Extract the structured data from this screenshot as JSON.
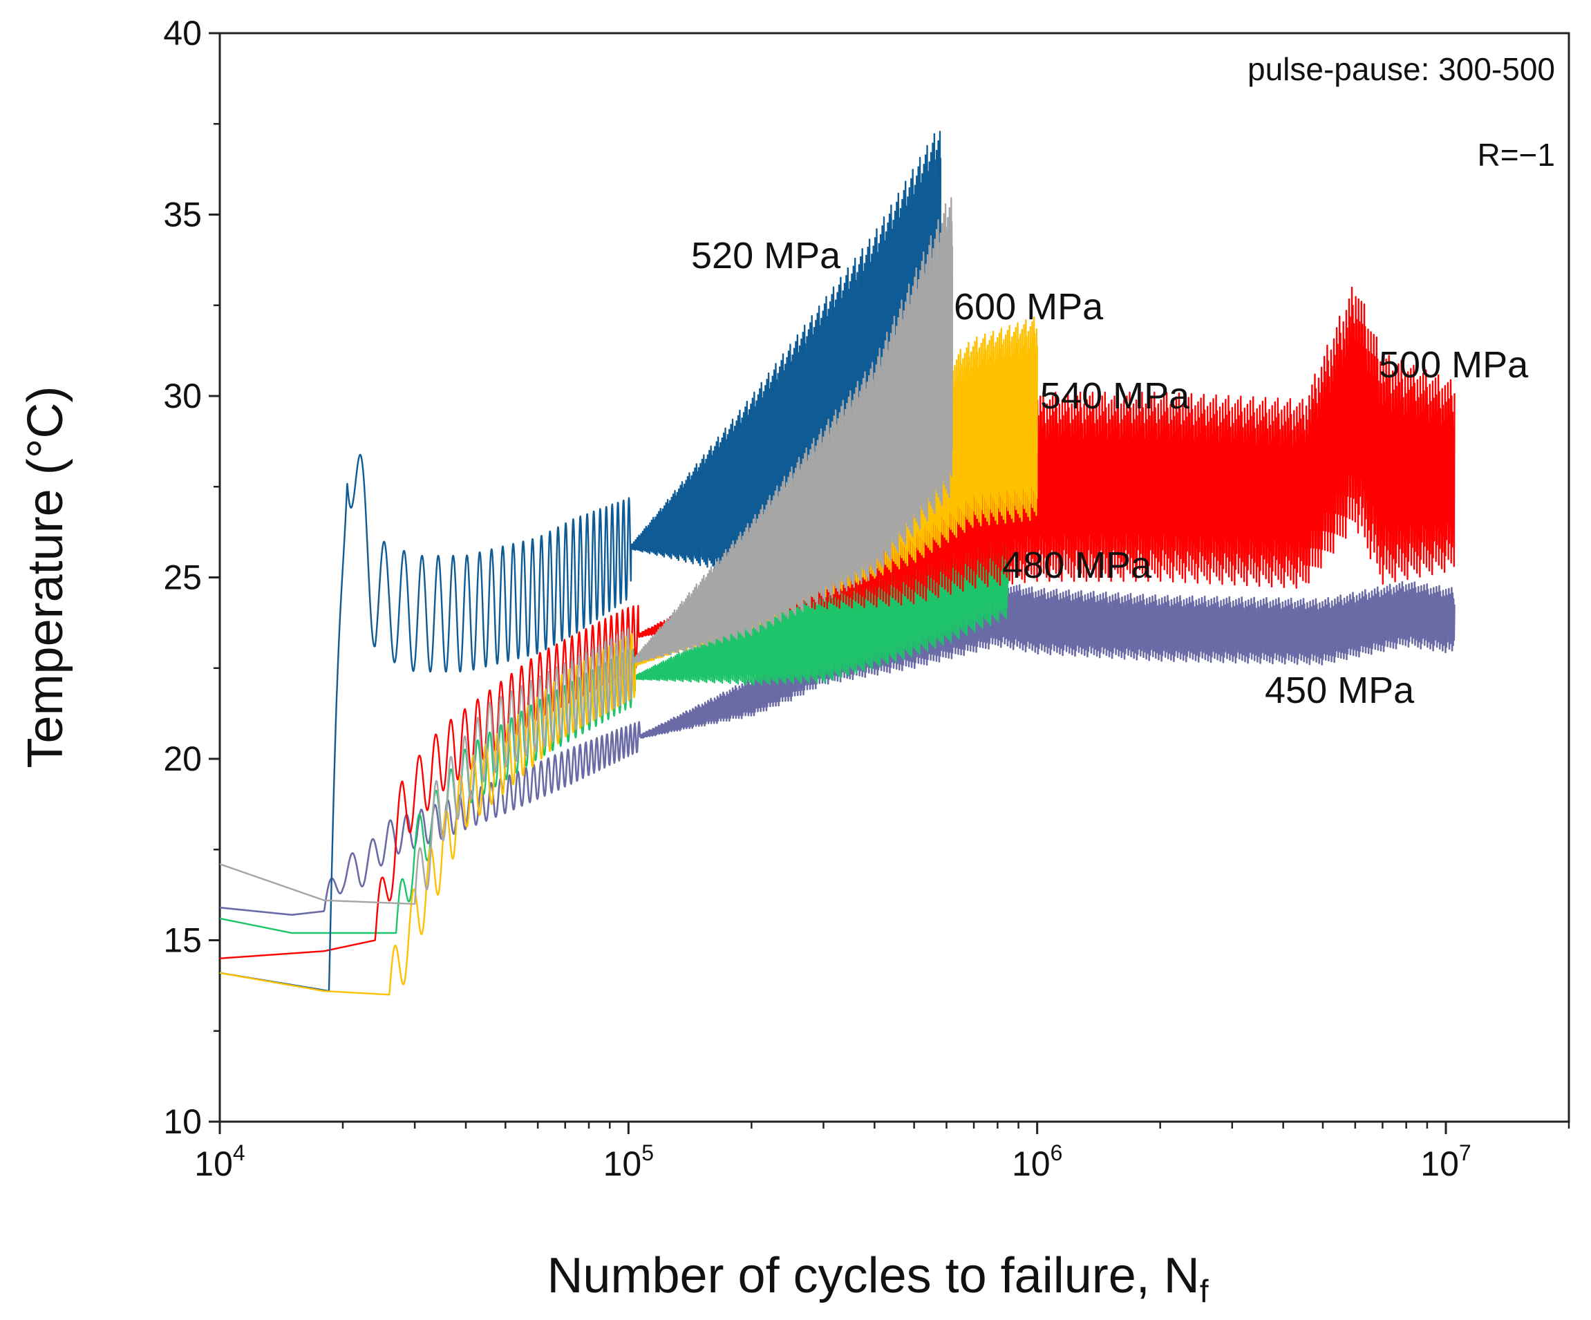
{
  "chart_data": {
    "type": "line",
    "title": "",
    "xlabel": "Number of cycles to failure, N",
    "xlabel_subscript": "f",
    "ylabel": "Temperature (°C)",
    "x_scale": "log",
    "xlim": [
      10000,
      20000000
    ],
    "ylim": [
      10,
      40
    ],
    "x_ticks": [
      {
        "value": 10000,
        "base": "10",
        "exp": "4"
      },
      {
        "value": 100000,
        "base": "10",
        "exp": "5"
      },
      {
        "value": 1000000,
        "base": "10",
        "exp": "6"
      },
      {
        "value": 10000000,
        "base": "10",
        "exp": "7"
      }
    ],
    "y_ticks": [
      {
        "value": 10,
        "label": "10"
      },
      {
        "value": 15,
        "label": "15"
      },
      {
        "value": 20,
        "label": "20"
      },
      {
        "value": 25,
        "label": "25"
      },
      {
        "value": 30,
        "label": "30"
      },
      {
        "value": 35,
        "label": "35"
      },
      {
        "value": 40,
        "label": "40"
      }
    ],
    "grid": false,
    "legend": "none; series labelled directly at line ends",
    "annotations": [
      "pulse-pause: 300-500",
      "R=−1"
    ],
    "series": [
      {
        "name": "450 MPa",
        "color": "#6a6aa6",
        "start_step": 18000,
        "osc_period": 2500,
        "osc_amp": 0.5,
        "envelope": [
          [
            10000,
            15.9
          ],
          [
            15000,
            15.7
          ],
          [
            18000,
            15.8
          ],
          [
            20000,
            16.9
          ],
          [
            22000,
            16.9
          ],
          [
            26000,
            17.8
          ],
          [
            35000,
            18.3
          ],
          [
            50000,
            19.0
          ],
          [
            100000,
            20.5
          ],
          [
            200000,
            21.7
          ],
          [
            300000,
            22.8
          ],
          [
            500000,
            23.4
          ],
          [
            800000,
            24.0
          ],
          [
            1000000,
            23.8
          ],
          [
            2000000,
            23.6
          ],
          [
            5000000,
            23.5
          ],
          [
            8000000,
            24.0
          ],
          [
            10500000,
            23.8
          ]
        ],
        "band": [
          [
            10000,
            0.0
          ],
          [
            100000,
            0.0
          ],
          [
            250000,
            0.7
          ],
          [
            500000,
            0.9
          ],
          [
            1000000,
            0.9
          ],
          [
            10500000,
            0.9
          ]
        ],
        "label": "450 MPa"
      },
      {
        "name": "480 MPa",
        "color": "#1dc46a",
        "start_step": 27000,
        "osc_period": 3000,
        "osc_amp": 0.8,
        "envelope": [
          [
            10000,
            15.6
          ],
          [
            15000,
            15.2
          ],
          [
            27000,
            15.2
          ],
          [
            30000,
            17.5
          ],
          [
            40000,
            19.5
          ],
          [
            60000,
            20.8
          ],
          [
            100000,
            22.2
          ],
          [
            200000,
            23.0
          ],
          [
            400000,
            24.2
          ],
          [
            600000,
            25.0
          ],
          [
            850000,
            25.8
          ]
        ],
        "band": [
          [
            10000,
            0.0
          ],
          [
            100000,
            0.0
          ],
          [
            180000,
            0.8
          ],
          [
            300000,
            1.6
          ],
          [
            500000,
            1.8
          ],
          [
            850000,
            1.9
          ]
        ],
        "label": "480 MPa"
      },
      {
        "name": "500 MPa",
        "color": "#ff0000",
        "start_step": 24000,
        "osc_period": 3000,
        "osc_amp": 0.9,
        "envelope": [
          [
            10000,
            14.5
          ],
          [
            18000,
            14.7
          ],
          [
            24000,
            15.0
          ],
          [
            28000,
            18.6
          ],
          [
            35000,
            20.0
          ],
          [
            60000,
            22.0
          ],
          [
            100000,
            23.3
          ],
          [
            200000,
            24.5
          ],
          [
            400000,
            25.8
          ],
          [
            700000,
            27.0
          ],
          [
            1000000,
            27.5
          ],
          [
            2000000,
            27.5
          ],
          [
            4500000,
            27.3
          ],
          [
            6000000,
            29.8
          ],
          [
            7000000,
            28.0
          ],
          [
            10500000,
            27.8
          ]
        ],
        "band": [
          [
            10000,
            0.0
          ],
          [
            100000,
            0.0
          ],
          [
            250000,
            0.8
          ],
          [
            500000,
            2.0
          ],
          [
            1000000,
            2.6
          ],
          [
            4500000,
            2.6
          ],
          [
            6000000,
            3.4
          ],
          [
            10500000,
            2.6
          ]
        ],
        "label": "500 MPa"
      },
      {
        "name": "520 MPa",
        "color": "#0e5b96",
        "start_step": 18500,
        "osc_period": 3000,
        "osc_amp": 1.6,
        "envelope": [
          [
            10000,
            14.1
          ],
          [
            18500,
            13.6
          ],
          [
            20500,
            29.0
          ],
          [
            24000,
            24.5
          ],
          [
            30000,
            24.0
          ],
          [
            40000,
            24.0
          ],
          [
            60000,
            24.5
          ],
          [
            100000,
            25.8
          ],
          [
            200000,
            27.5
          ],
          [
            400000,
            30.5
          ],
          [
            580000,
            33.0
          ]
        ],
        "band": [
          [
            10000,
            0.0
          ],
          [
            100000,
            0.0
          ],
          [
            200000,
            2.5
          ],
          [
            400000,
            4.0
          ],
          [
            580000,
            4.5
          ]
        ],
        "label": "520 MPa"
      },
      {
        "name": "540 MPa",
        "color": "#ffc000",
        "start_step": 26000,
        "osc_period": 3000,
        "osc_amp": 0.9,
        "envelope": [
          [
            10000,
            14.1
          ],
          [
            18000,
            13.6
          ],
          [
            26000,
            13.5
          ],
          [
            30000,
            15.6
          ],
          [
            40000,
            19.0
          ],
          [
            70000,
            21.5
          ],
          [
            100000,
            22.5
          ],
          [
            200000,
            24.5
          ],
          [
            400000,
            27.0
          ],
          [
            700000,
            29.0
          ],
          [
            1000000,
            29.4
          ]
        ],
        "band": [
          [
            10000,
            0.0
          ],
          [
            100000,
            0.0
          ],
          [
            250000,
            1.2
          ],
          [
            500000,
            2.4
          ],
          [
            1000000,
            2.8
          ]
        ],
        "label": "540 MPa"
      },
      {
        "name": "600 MPa",
        "color": "#a6a6a6",
        "start_step": 30000,
        "osc_period": 3000,
        "osc_amp": 1.0,
        "envelope": [
          [
            10000,
            17.1
          ],
          [
            18000,
            16.1
          ],
          [
            30000,
            16.0
          ],
          [
            34000,
            18.5
          ],
          [
            45000,
            20.5
          ],
          [
            80000,
            22.0
          ],
          [
            100000,
            22.6
          ],
          [
            200000,
            25.0
          ],
          [
            400000,
            28.0
          ],
          [
            620000,
            31.5
          ]
        ],
        "band": [
          [
            10000,
            0.0
          ],
          [
            100000,
            0.0
          ],
          [
            200000,
            1.6
          ],
          [
            400000,
            3.0
          ],
          [
            620000,
            4.2
          ]
        ],
        "label": "600 MPa"
      }
    ]
  }
}
